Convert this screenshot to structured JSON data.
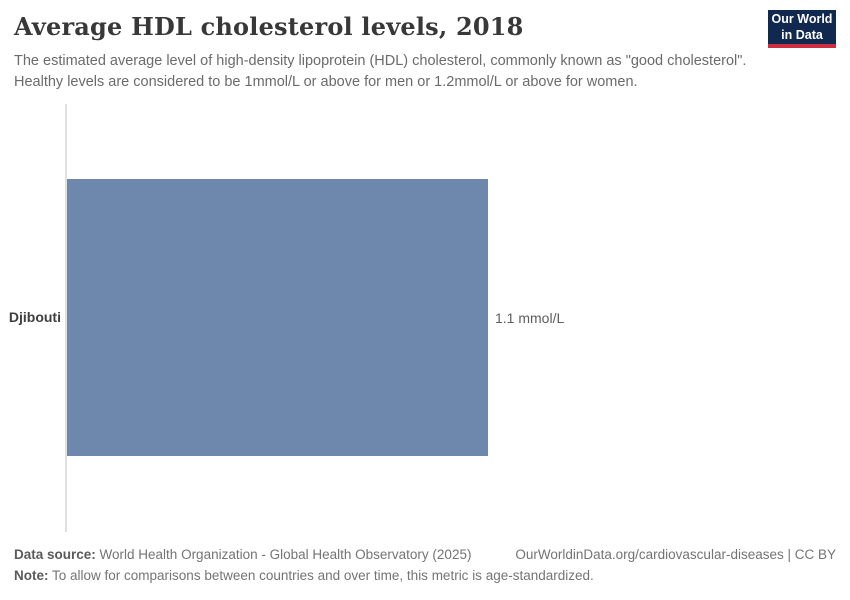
{
  "header": {
    "title": "Average HDL cholesterol levels, 2018",
    "subtitle": "The estimated average level of high-density lipoprotein (HDL) cholesterol, commonly known as \"good cholesterol\". Healthy levels are considered to be 1mmol/L or above for men or 1.2mmol/L or above for women.",
    "logo": {
      "line1": "Our World",
      "line2": "in Data",
      "bg_color": "#12294f",
      "accent_color": "#cc2e41"
    }
  },
  "chart_data": {
    "type": "bar",
    "orientation": "horizontal",
    "title": "Average HDL cholesterol levels, 2018",
    "categories": [
      "Djibouti"
    ],
    "values": [
      1.1
    ],
    "unit": "mmol/L",
    "value_labels": [
      "1.1 mmol/L"
    ],
    "bar_color": "#6e87ad",
    "axis_line_color": "#e0e0e0",
    "xlim": [
      0,
      2
    ],
    "x_axis_ticks_visible": false,
    "grid": false,
    "legend": "none"
  },
  "footer": {
    "data_source_label": "Data source:",
    "data_source_text": " World Health Organization - Global Health Observatory (2025)",
    "note_label": "Note:",
    "note_text": " To allow for comparisons between countries and over time, this metric is age-standardized.",
    "right_text": "OurWorldinData.org/cardiovascular-diseases | CC BY"
  }
}
